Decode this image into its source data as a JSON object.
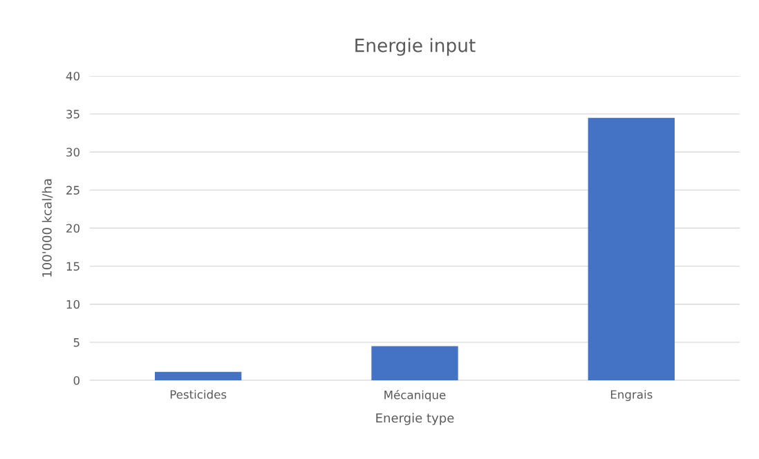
{
  "chart_data": {
    "type": "bar",
    "title": "Energie input",
    "xlabel": "Energie type",
    "ylabel": "100'000 kcal/ha",
    "categories": [
      "Pesticides",
      "Mécanique",
      "Engrais"
    ],
    "values": [
      1.1,
      4.5,
      34.5
    ],
    "color": "#4472c4",
    "ylim": [
      0,
      40
    ],
    "yticks": [
      0,
      5,
      10,
      15,
      20,
      25,
      30,
      35,
      40
    ],
    "grid": "y",
    "legend": false
  }
}
